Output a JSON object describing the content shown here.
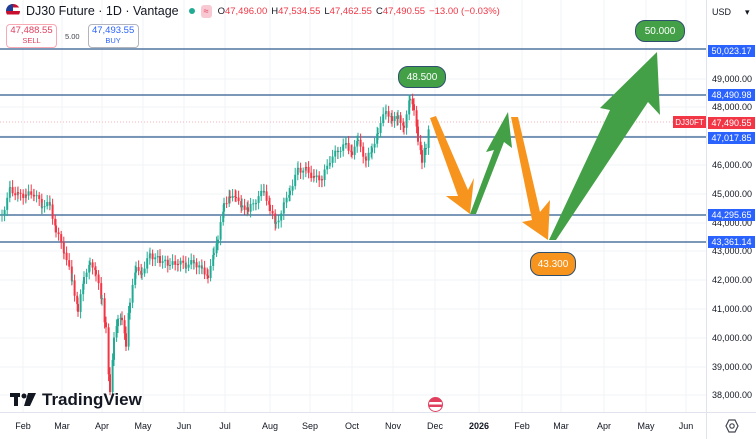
{
  "header": {
    "symbol_title": "DJ30 Future · 1D · Vantage",
    "market_status_icon": "market-open-dot",
    "wave_icon": "≈",
    "ohlc": {
      "open_label": "O",
      "open": "47,496.00",
      "high_label": "H",
      "high": "47,534.55",
      "low_label": "L",
      "low": "47,462.55",
      "close_label": "C",
      "close": "47,490.55",
      "change": "−13.00 (−0.03%)"
    }
  },
  "trade": {
    "sell_price": "47,488.55",
    "sell_label": "SELL",
    "spread": "5.00",
    "buy_price": "47,493.55",
    "buy_label": "BUY"
  },
  "price_axis": {
    "currency": "USD",
    "ticks": [
      "49,000.00",
      "48,000.00",
      "46,000.00",
      "45,000.00",
      "44,000.00",
      "43,000.00",
      "42,000.00",
      "41,000.00",
      "40,000.00",
      "39,000.00",
      "38,000.00"
    ],
    "level_labels": [
      "50,023.17",
      "48,490.98",
      "47,017.85",
      "44,295.65",
      "43,361.14"
    ],
    "current_price": "47,490.55",
    "symbol_tag": "DJ30FT"
  },
  "time_axis": {
    "labels": [
      "Feb",
      "Mar",
      "Apr",
      "May",
      "Jun",
      "Jul",
      "Aug",
      "Sep",
      "Oct",
      "Nov",
      "Dec",
      "2026",
      "Feb",
      "Mar",
      "Apr",
      "May",
      "Jun"
    ]
  },
  "annotations": {
    "target_high": "50.000",
    "recent_high": "48.500",
    "target_low": "43.300"
  },
  "branding": {
    "logo_text": "TradingView"
  },
  "colors": {
    "up": "#22ab94",
    "down": "#f23645",
    "level_line": "#2e5a8f",
    "label_blue": "#2962ff",
    "arrow_green": "#43a047",
    "arrow_orange": "#f7941d"
  },
  "chart_data": {
    "type": "candlestick",
    "title": "DJ30 Future · 1D · Vantage",
    "xlabel": "",
    "ylabel": "USD",
    "ylim": [
      37600,
      51300
    ],
    "x": [
      "Feb",
      "Mar",
      "Apr",
      "May",
      "Jun",
      "Jul",
      "Aug",
      "Sep",
      "Oct",
      "Nov",
      "Dec"
    ],
    "approx_close": [
      44900,
      43200,
      38500,
      41800,
      42900,
      44700,
      44500,
      45600,
      46700,
      47600,
      47490
    ],
    "horizontal_levels": [
      50023.17,
      48490.98,
      47017.85,
      44295.65,
      43361.14
    ],
    "projection_path": [
      {
        "date": "late Nov",
        "price": 47490
      },
      {
        "date": "late Dec",
        "price": 44300
      },
      {
        "date": "mid Jan",
        "price": 47020
      },
      {
        "date": "mid Feb",
        "price": 43360
      },
      {
        "date": "mid May",
        "price": 50020
      }
    ],
    "annotations": [
      "48.500",
      "43.300",
      "50.000"
    ],
    "grid": true
  }
}
